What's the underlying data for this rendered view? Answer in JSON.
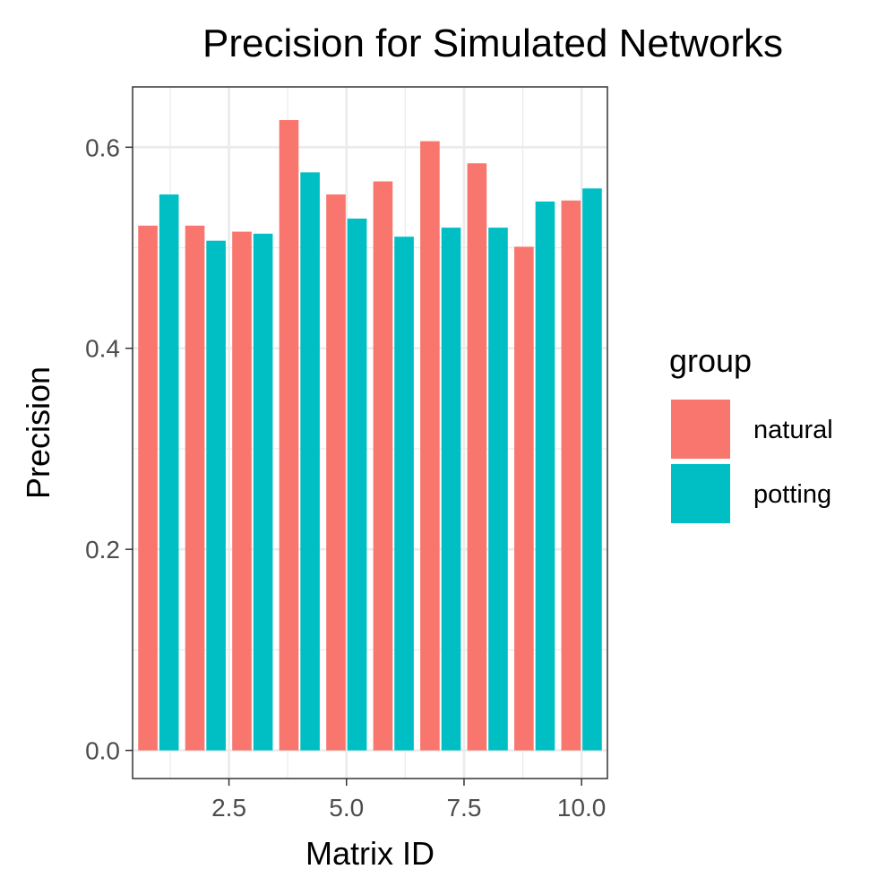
{
  "chart_data": {
    "type": "bar",
    "title": "Precision for Simulated Networks",
    "xlabel": "Matrix ID",
    "ylabel": "Precision",
    "x": [
      1,
      2,
      3,
      4,
      5,
      6,
      7,
      8,
      9,
      10
    ],
    "xlim": [
      0.45,
      10.55
    ],
    "ylim": [
      -0.028,
      0.66
    ],
    "x_ticks": [
      2.5,
      5.0,
      7.5,
      10.0
    ],
    "x_tick_labels": [
      "2.5",
      "5.0",
      "7.5",
      "10.0"
    ],
    "y_ticks": [
      0.0,
      0.2,
      0.4,
      0.6
    ],
    "y_tick_labels": [
      "0.0",
      "0.2",
      "0.4",
      "0.6"
    ],
    "grid": true,
    "legend": {
      "title": "group",
      "position": "right"
    },
    "series": [
      {
        "name": "natural",
        "color": "#F8766D",
        "values": [
          0.522,
          0.522,
          0.516,
          0.627,
          0.553,
          0.566,
          0.606,
          0.584,
          0.501,
          0.547
        ]
      },
      {
        "name": "potting",
        "color": "#00BFC4",
        "values": [
          0.553,
          0.507,
          0.514,
          0.575,
          0.529,
          0.511,
          0.52,
          0.52,
          0.546,
          0.559
        ]
      }
    ]
  }
}
